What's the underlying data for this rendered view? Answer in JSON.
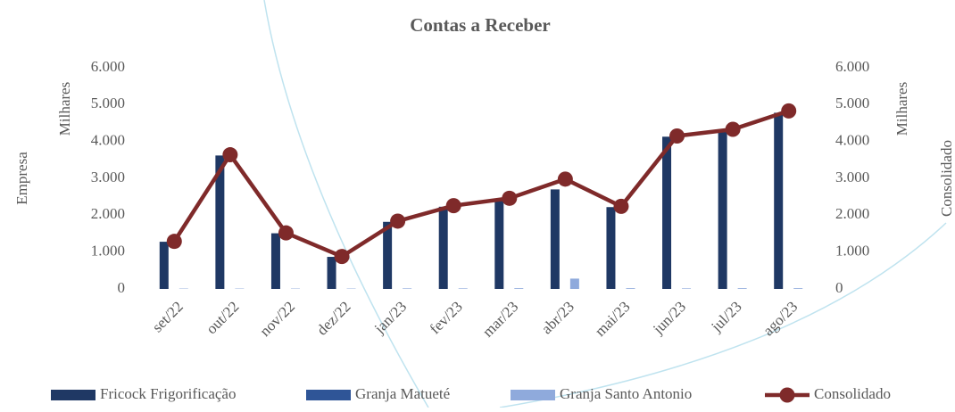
{
  "chart_data": {
    "type": "bar",
    "title": "Contas a Receber",
    "y_title": "Empresa",
    "y_unit_label": "Milhares",
    "y2_title": "Consolidado",
    "y2_unit_label": "Milhares",
    "categories": [
      "set/22",
      "out/22",
      "nov/22",
      "dez/22",
      "jan/23",
      "fev/23",
      "mar/23",
      "abr/23",
      "mai/23",
      "jun/23",
      "jul/23",
      "ago/23"
    ],
    "series": [
      {
        "name": "Fricock Frigorificação",
        "color": "#1f3864",
        "type": "bar",
        "values": [
          1280,
          3620,
          1510,
          870,
          1820,
          2230,
          2430,
          2700,
          2220,
          4130,
          4300,
          4780
        ]
      },
      {
        "name": "Granja Matueté",
        "color": "#2f5597",
        "type": "bar",
        "values": [
          0,
          0,
          0,
          0,
          0,
          0,
          0,
          0,
          0,
          0,
          0,
          0
        ]
      },
      {
        "name": "Granja Santo Antonio",
        "color": "#8faadc",
        "type": "bar",
        "values": [
          10,
          10,
          10,
          10,
          15,
          15,
          20,
          280,
          20,
          15,
          20,
          20
        ]
      },
      {
        "name": "Consolidado",
        "color": "#7f2a2a",
        "type": "line",
        "axis": "y2",
        "values": [
          1290,
          3640,
          1520,
          880,
          1840,
          2260,
          2460,
          2980,
          2240,
          4150,
          4330,
          4830
        ]
      }
    ],
    "ylim": [
      0,
      6000
    ],
    "yticks": [
      0,
      {
        "value": 1000,
        "label": "1.000"
      },
      {
        "value": 2000,
        "label": "2.000"
      },
      {
        "value": 3000,
        "label": "3.000"
      },
      {
        "value": 4000,
        "label": "4.000"
      },
      {
        "value": 5000,
        "label": "5.000"
      },
      {
        "value": 6000,
        "label": "6.000"
      }
    ],
    "y2lim": [
      0,
      6000
    ],
    "y2ticks": [
      0,
      {
        "value": 1000,
        "label": "1.000"
      },
      {
        "value": 2000,
        "label": "2.000"
      },
      {
        "value": 3000,
        "label": "3.000"
      },
      {
        "value": 4000,
        "label": "4.000"
      },
      {
        "value": 5000,
        "label": "5.000"
      },
      {
        "value": 6000,
        "label": "6.000"
      }
    ],
    "grid": false,
    "legend": "bottom"
  }
}
